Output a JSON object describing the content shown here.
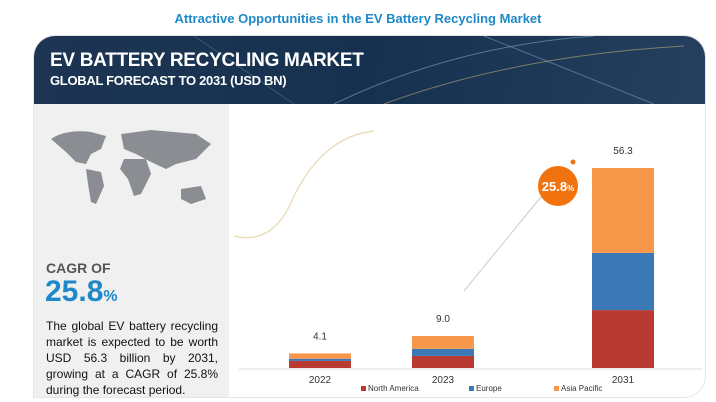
{
  "page_title": "Attractive Opportunities in the EV Battery Recycling Market",
  "header": {
    "title": "EV BATTERY RECYCLING MARKET",
    "subtitle": "GLOBAL FORECAST TO 2031 (USD BN)"
  },
  "left_panel": {
    "cagr_label": "CAGR OF",
    "cagr_value": "25.8",
    "cagr_unit": "%",
    "description": "The global EV battery recycling market is expected to be worth USD 56.3 billion by 2031, growing at a CAGR of 25.8% during the forecast period."
  },
  "chart_data": {
    "type": "bar",
    "stacked": true,
    "categories": [
      "2022",
      "2023",
      "2031"
    ],
    "totals": [
      "4.1",
      "9.0",
      "56.3"
    ],
    "series": [
      {
        "name": "North America",
        "color": "#b83a30",
        "values": [
          2.0,
          3.4,
          16.3
        ]
      },
      {
        "name": "Europe",
        "color": "#3a78b8",
        "values": [
          0.6,
          2.0,
          16.1
        ]
      },
      {
        "name": "Asia Pacific",
        "color": "#f7974a",
        "values": [
          1.5,
          3.6,
          23.9
        ]
      }
    ],
    "annotation": {
      "value": "25.8",
      "unit": "%",
      "color": "#f0730f"
    },
    "ylim": [
      0,
      56.3
    ],
    "legend": "bottom",
    "grid": false
  }
}
